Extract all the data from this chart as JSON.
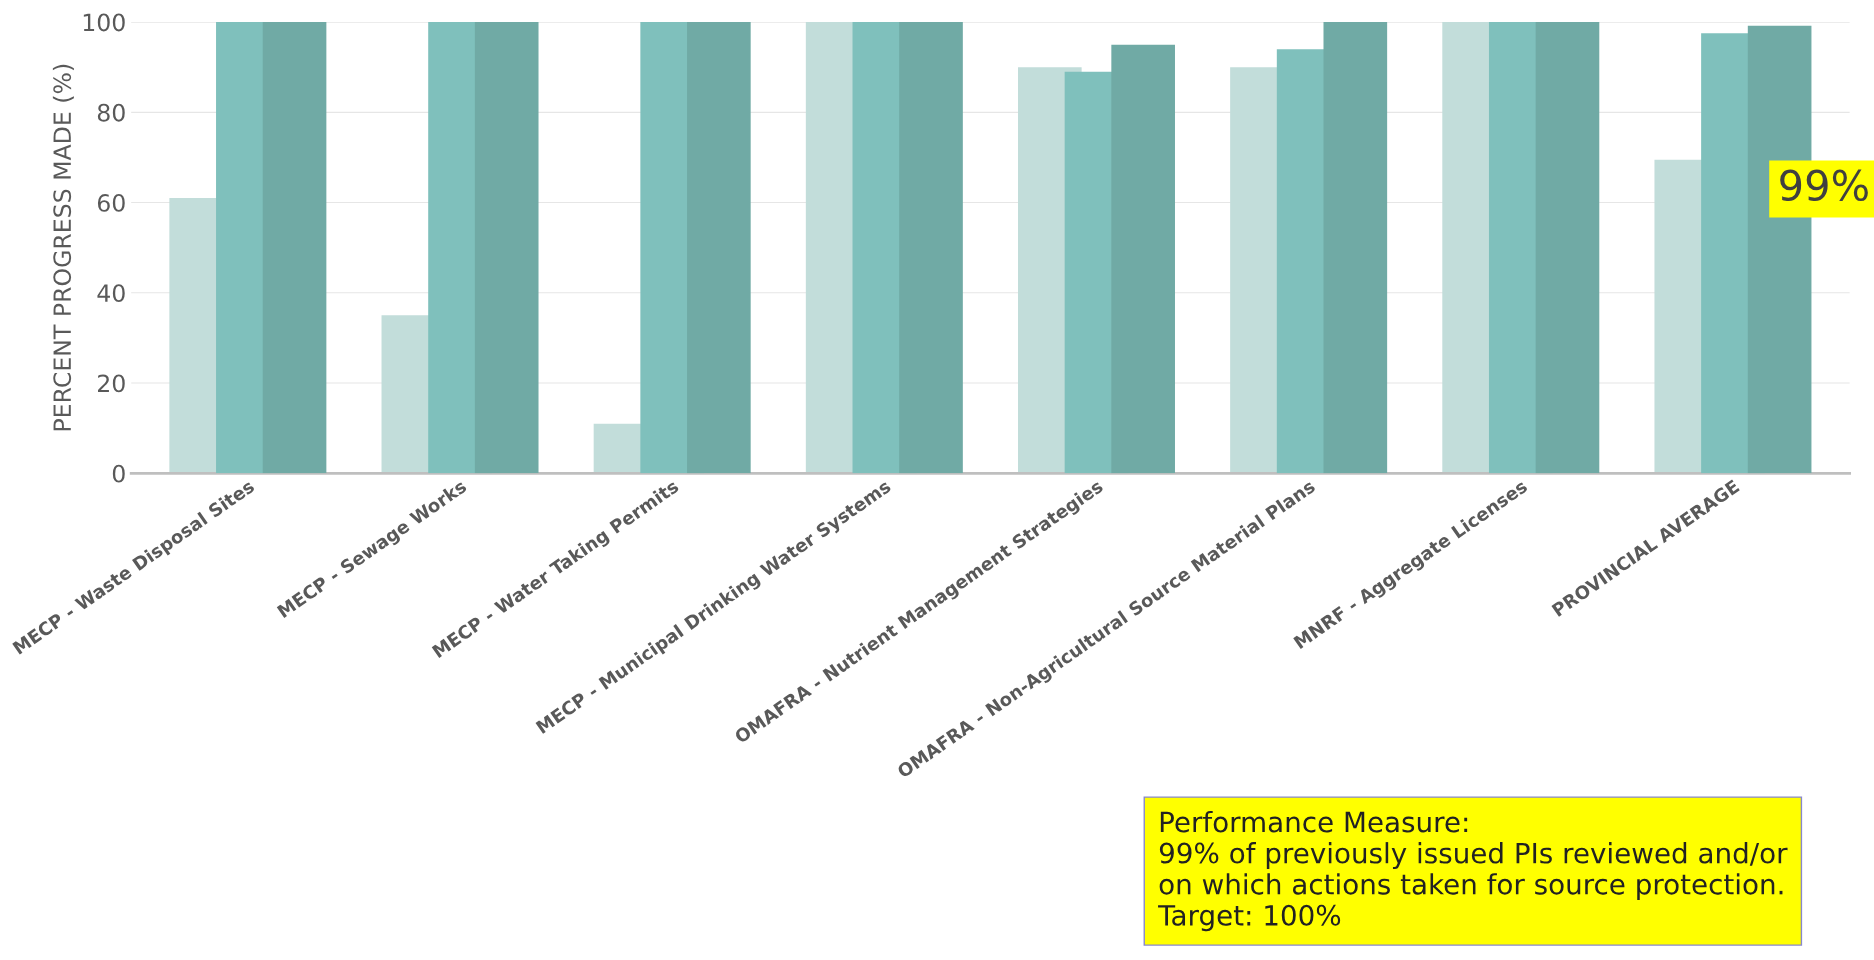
{
  "chart_data": {
    "type": "bar",
    "ylabel": "PERCENT PROGRESS MADE (%)",
    "categories": [
      "MECP - Waste Disposal Sites",
      "MECP - Sewage Works",
      "MECP - Water Taking Permits",
      "MECP - Municipal Drinking Water Systems",
      "OMAFRA - Nutrient Management Strategies",
      "OMAFRA - Non-Agricultural Source Material Plans",
      "MNRF - Aggregate Licenses",
      "PROVINCIAL AVERAGE"
    ],
    "series": [
      {
        "color": "#c2ddda",
        "values": [
          61,
          35,
          11,
          100,
          90,
          90,
          100,
          69.5
        ]
      },
      {
        "color": "#7fc0bc",
        "values": [
          100,
          100,
          100,
          100,
          89,
          94,
          100,
          97.5
        ]
      },
      {
        "color": "#70aaa5",
        "values": [
          100,
          100,
          100,
          100,
          95,
          100,
          100,
          99.2
        ]
      }
    ],
    "ylim": [
      0,
      100
    ],
    "yticks": [
      0,
      20,
      40,
      60,
      80,
      100
    ],
    "grid": "y",
    "legend": false,
    "annotations": [
      "99%",
      "Performance Measure:\n99% of previously issued PIs reviewed and/or\non which actions taken for source protection.\nTarget: 100%"
    ]
  }
}
